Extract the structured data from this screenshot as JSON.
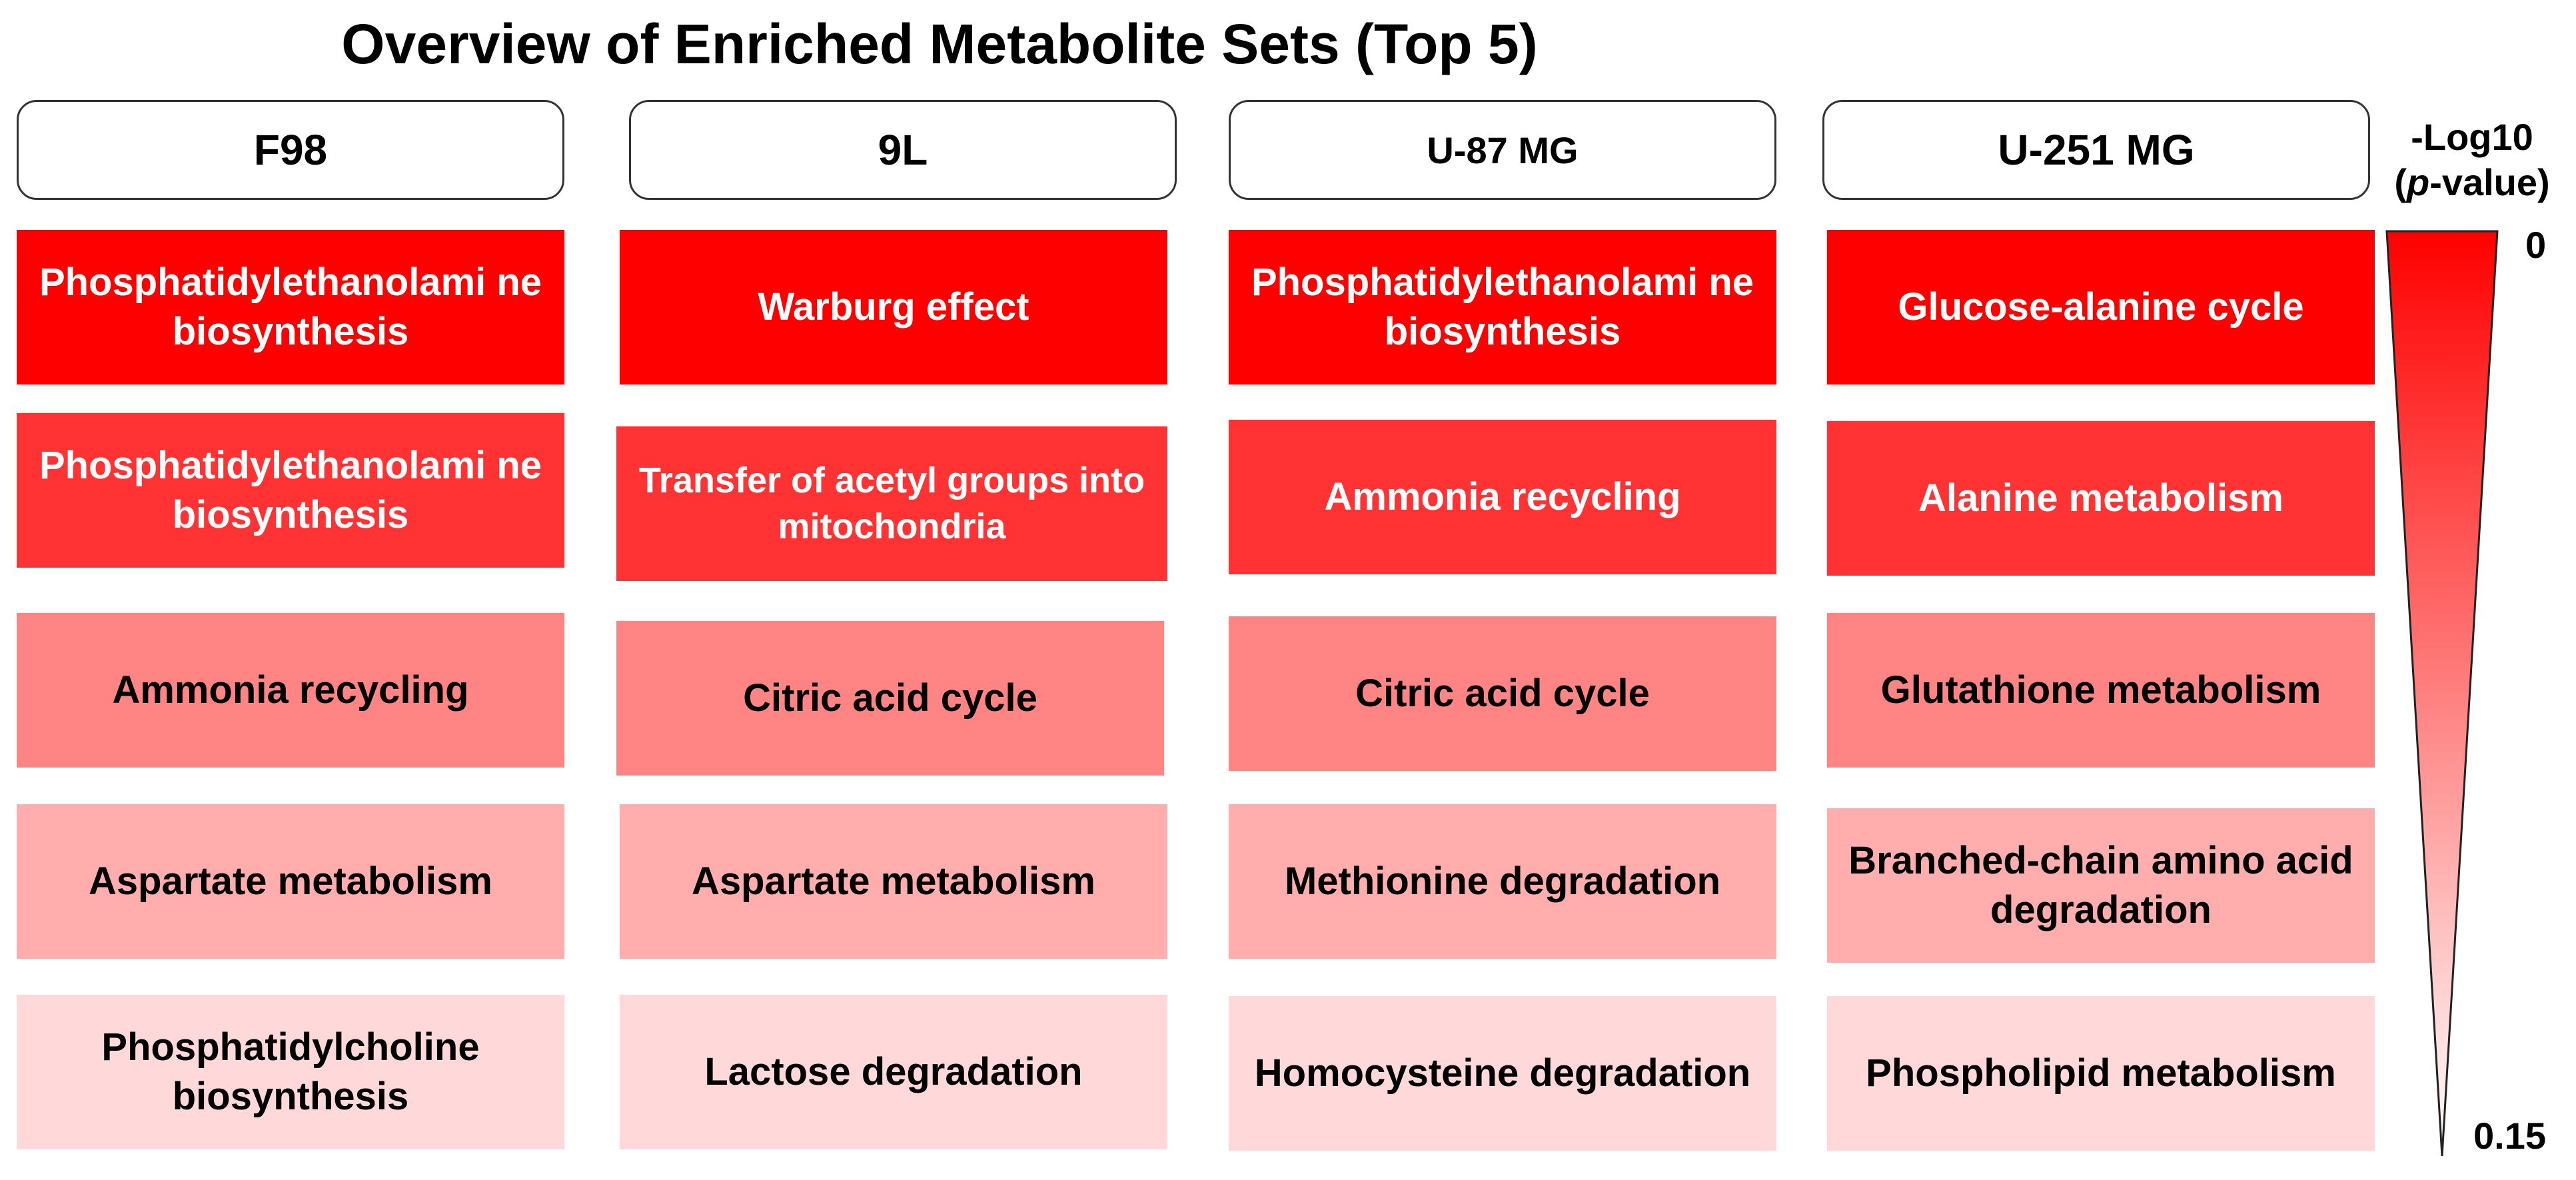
{
  "title": "Overview of Enriched Metabolite Sets (Top 5)",
  "columns": [
    {
      "name": "F98",
      "sets": [
        "Phosphatidylethanolami ne biosynthesis",
        "Phosphatidylethanolami ne biosynthesis",
        "Ammonia recycling",
        "Aspartate metabolism",
        "Phosphatidylcholine biosynthesis"
      ]
    },
    {
      "name": "9L",
      "sets": [
        "Warburg effect",
        "Transfer of acetyl groups into mitochondria",
        "Citric acid cycle",
        "Aspartate metabolism",
        "Lactose degradation"
      ]
    },
    {
      "name": "U-87 MG",
      "sets": [
        "Phosphatidylethanolami ne biosynthesis",
        "Ammonia recycling",
        "Citric acid cycle",
        "Methionine degradation",
        "Homocysteine degradation"
      ]
    },
    {
      "name": "U-251 MG",
      "sets": [
        "Glucose-alanine cycle",
        "Alanine metabolism",
        "Glutathione metabolism",
        "Branched-chain amino acid degradation",
        "Phospholipid metabolism"
      ]
    }
  ],
  "legend": {
    "title_line1": "-Log10",
    "title_paren_open": "(",
    "title_italic": "p",
    "title_rest": "-value)",
    "top_label": "0",
    "bottom_label": "0.15",
    "gradient_top_color": "#ff0000",
    "gradient_bottom_color": "#ffffff"
  },
  "level_colors": [
    "#ff0000",
    "#ff3333",
    "#ff8585",
    "#ffadad",
    "#ffd9d9"
  ]
}
